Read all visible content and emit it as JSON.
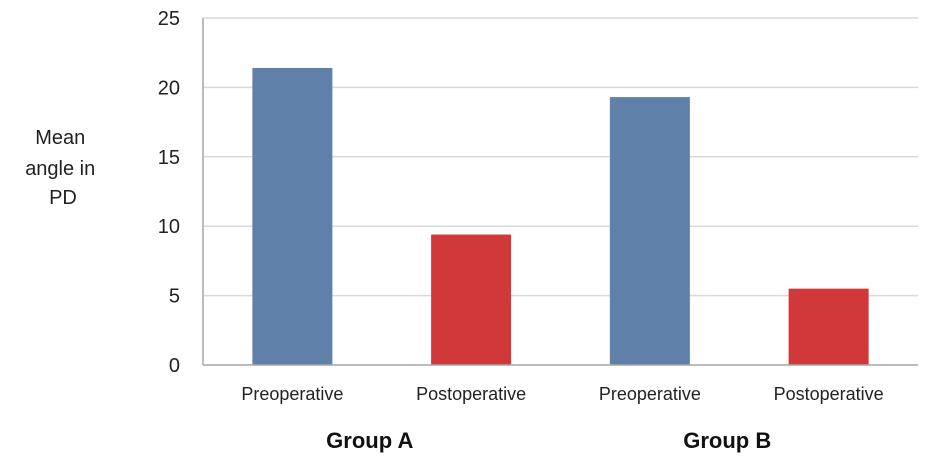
{
  "chart_data": {
    "type": "bar",
    "categories": [
      "Preoperative",
      "Postoperative",
      "Preoperative",
      "Postoperative"
    ],
    "groups": [
      "Group A",
      "Group B"
    ],
    "values": [
      21.4,
      9.4,
      19.3,
      5.5
    ],
    "bar_colors": [
      "#5f80a8",
      "#d0383a",
      "#5f80a8",
      "#d0383a"
    ],
    "ylabel_lines": [
      "Mean",
      "angle in",
      "PD"
    ],
    "ylim": [
      0,
      25
    ],
    "yticks": [
      0,
      5,
      10,
      15,
      20,
      25
    ],
    "grid": true,
    "legend": "none"
  },
  "colors": {
    "grid": "#d9d9d9",
    "axis": "#a6a6a6"
  }
}
